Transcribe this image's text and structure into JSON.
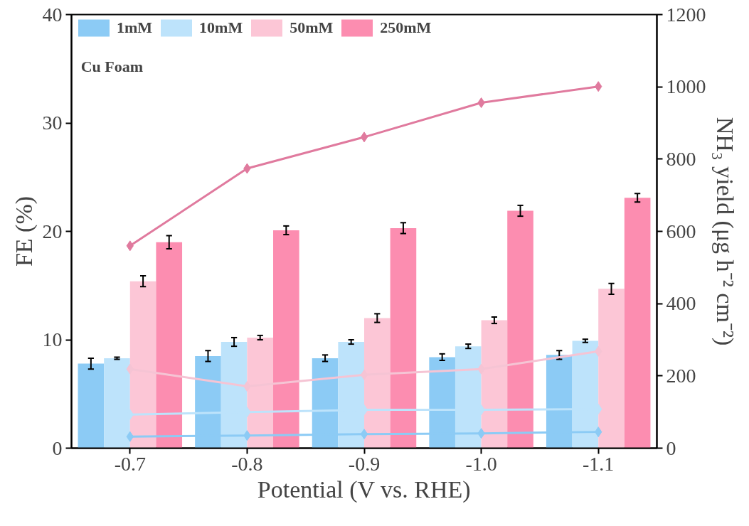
{
  "chart_data": {
    "type": "bar",
    "categories": [
      "-0.7",
      "-0.8",
      "-0.9",
      "-1.0",
      "-1.1"
    ],
    "xlabel": "Potential (V vs. RHE)",
    "ylabel": "FE (%)",
    "y2label": "NH₃ yield (μg h⁻² cm⁻²)",
    "annotations": [
      "Cu Foam"
    ],
    "ylim": [
      0,
      40
    ],
    "yticks": [
      0,
      10,
      20,
      30,
      40
    ],
    "y2lim": [
      0,
      1200
    ],
    "y2ticks": [
      0,
      200,
      400,
      600,
      800,
      1000,
      1200
    ],
    "grid": false,
    "legend": "top left",
    "series": [
      {
        "name": "1mM",
        "color": "#8ccbf5",
        "values": [
          7.8,
          8.5,
          8.3,
          8.4,
          8.6
        ],
        "errors": [
          0.5,
          0.5,
          0.3,
          0.3,
          0.4
        ]
      },
      {
        "name": "10mM",
        "color": "#bde3fb",
        "values": [
          8.3,
          9.8,
          9.8,
          9.4,
          9.9
        ],
        "errors": [
          0.1,
          0.4,
          0.2,
          0.2,
          0.15
        ]
      },
      {
        "name": "50mM",
        "color": "#fcc6d6",
        "values": [
          15.4,
          10.2,
          12.0,
          11.8,
          14.7
        ],
        "errors": [
          0.5,
          0.2,
          0.4,
          0.3,
          0.5
        ]
      },
      {
        "name": "250mM",
        "color": "#fc8db0",
        "values": [
          19.0,
          20.1,
          20.3,
          21.9,
          23.1
        ],
        "errors": [
          0.6,
          0.4,
          0.5,
          0.5,
          0.4
        ]
      },
      {
        "type": "line",
        "axis": "y2",
        "marker": "diamond",
        "color": "#8ccbf5",
        "values": [
          32,
          35,
          39,
          41,
          45
        ]
      },
      {
        "type": "line",
        "axis": "y2",
        "marker": "diamond",
        "color": "#bde3fb",
        "values": [
          93,
          100,
          106,
          106,
          108
        ]
      },
      {
        "type": "line",
        "axis": "y2",
        "marker": "diamond",
        "color": "#f5c4d4",
        "values": [
          219,
          171,
          203,
          219,
          268
        ]
      },
      {
        "type": "line",
        "axis": "y2",
        "marker": "diamond",
        "color": "#e07a9e",
        "values": [
          560,
          774,
          861,
          956,
          1001
        ]
      }
    ]
  }
}
